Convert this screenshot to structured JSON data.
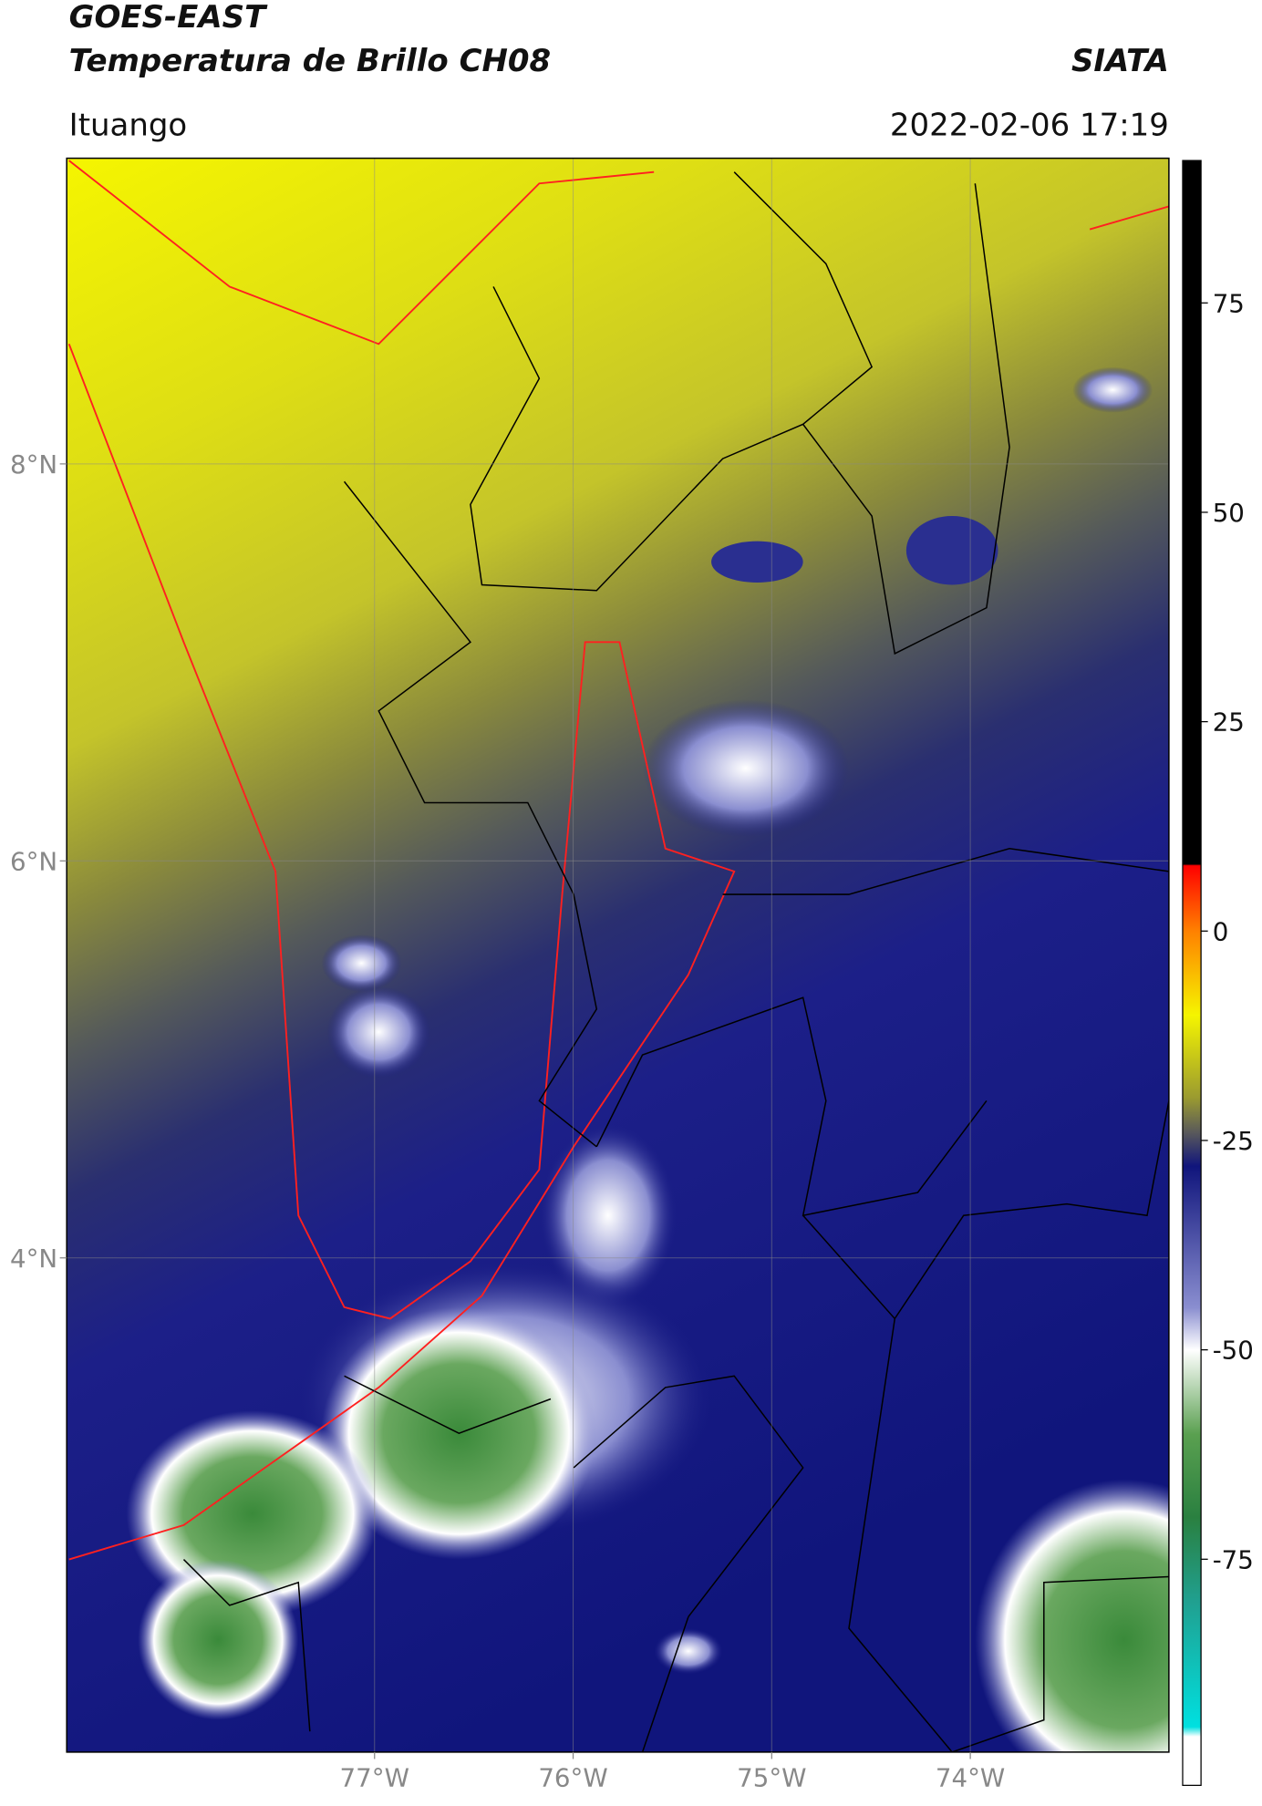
{
  "header": {
    "title_line1": "GOES-EAST",
    "title_line2": "Temperatura de Brillo CH08",
    "brand": "SIATA",
    "location": "Ituango",
    "datetime": "2022-02-06 17:19"
  },
  "map": {
    "xlim": [
      -78.55,
      -73.0
    ],
    "ylim": [
      1.51,
      9.54
    ],
    "xticks": [
      {
        "value": -77,
        "label": "77°W"
      },
      {
        "value": -76,
        "label": "76°W"
      },
      {
        "value": -75,
        "label": "75°W"
      },
      {
        "value": -74,
        "label": "74°W"
      }
    ],
    "yticks": [
      {
        "value": 4,
        "label": "4°N"
      },
      {
        "value": 6,
        "label": "6°N"
      },
      {
        "value": 8,
        "label": "8°N"
      }
    ],
    "grid": true
  },
  "colorbar": {
    "lim": [
      -102,
      92
    ],
    "ticks": [
      -75,
      -50,
      -25,
      0,
      25,
      50,
      75
    ]
  }
}
